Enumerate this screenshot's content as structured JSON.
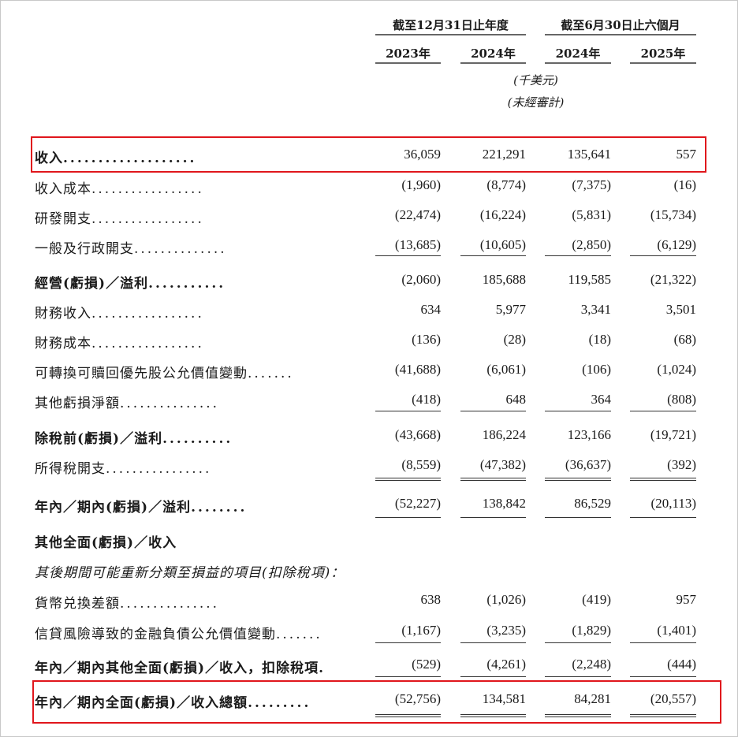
{
  "header": {
    "group1": "截至12月31日止年度",
    "group2": "截至6月30日止六個月",
    "years": [
      "2023年",
      "2024年",
      "2024年",
      "2025年"
    ],
    "unit": "(千美元)",
    "unaudited": "(未經審計)"
  },
  "rows": [
    {
      "label": "收入",
      "dots": "...................",
      "values": [
        "36,059",
        "221,291",
        "135,641",
        "557"
      ],
      "style": "b"
    },
    {
      "label": "收入成本",
      "dots": ".................",
      "values": [
        "(1,960)",
        "(8,774)",
        "(7,375)",
        "(16)"
      ],
      "style": ""
    },
    {
      "label": "研發開支",
      "dots": ".................",
      "values": [
        "(22,474)",
        "(16,224)",
        "(5,831)",
        "(15,734)"
      ],
      "style": ""
    },
    {
      "label": "一般及行政開支",
      "dots": "..............",
      "values": [
        "(13,685)",
        "(10,605)",
        "(2,850)",
        "(6,129)"
      ],
      "style": ""
    },
    {
      "label": "經營(虧損)／溢利",
      "dots": "...........",
      "values": [
        "(2,060)",
        "185,688",
        "119,585",
        "(21,322)"
      ],
      "style": "b"
    },
    {
      "label": "財務收入",
      "dots": ".................",
      "values": [
        "634",
        "5,977",
        "3,341",
        "3,501"
      ],
      "style": ""
    },
    {
      "label": "財務成本",
      "dots": ".................",
      "values": [
        "(136)",
        "(28)",
        "(18)",
        "(68)"
      ],
      "style": ""
    },
    {
      "label": "可轉換可贖回優先股公允價值變動",
      "dots": ".......",
      "values": [
        "(41,688)",
        "(6,061)",
        "(106)",
        "(1,024)"
      ],
      "style": ""
    },
    {
      "label": "其他虧損淨額",
      "dots": "...............",
      "values": [
        "(418)",
        "648",
        "364",
        "(808)"
      ],
      "style": ""
    },
    {
      "label": "除稅前(虧損)／溢利",
      "dots": "..........",
      "values": [
        "(43,668)",
        "186,224",
        "123,166",
        "(19,721)"
      ],
      "style": "b"
    },
    {
      "label": "所得稅開支",
      "dots": "................",
      "values": [
        "(8,559)",
        "(47,382)",
        "(36,637)",
        "(392)"
      ],
      "style": ""
    },
    {
      "label": "年內／期內(虧損)／溢利",
      "dots": "........",
      "values": [
        "(52,227)",
        "138,842",
        "86,529",
        "(20,113)"
      ],
      "style": "b"
    },
    {
      "label": "其他全面(虧損)／收入",
      "dots": "",
      "values": [
        "",
        "",
        "",
        ""
      ],
      "style": "b"
    },
    {
      "label": "其後期間可能重新分類至損益的項目(扣除稅項)：",
      "dots": "",
      "values": [
        "",
        "",
        "",
        ""
      ],
      "style": "i"
    },
    {
      "label": "貨幣兑換差額",
      "dots": "...............",
      "values": [
        "638",
        "(1,026)",
        "(419)",
        "957"
      ],
      "style": ""
    },
    {
      "label": "信貸風險導致的金融負債公允價值變動",
      "dots": ".......",
      "values": [
        "(1,167)",
        "(3,235)",
        "(1,829)",
        "(1,401)"
      ],
      "style": ""
    },
    {
      "label": "年內／期內其他全面(虧損)／收入，扣除稅項",
      "dots": ".",
      "values": [
        "(529)",
        "(4,261)",
        "(2,248)",
        "(444)"
      ],
      "style": "b"
    },
    {
      "label": "年內／期內全面(虧損)／收入總額",
      "dots": ".........",
      "values": [
        "(52,756)",
        "134,581",
        "84,281",
        "(20,557)"
      ],
      "style": "b"
    }
  ],
  "highlight_color": "#e0161c"
}
